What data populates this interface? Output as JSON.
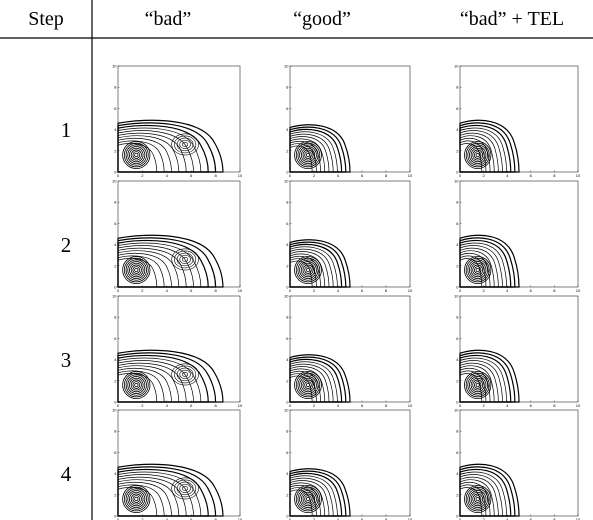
{
  "table": {
    "header": [
      "Step",
      "“bad”",
      "“good”",
      "“bad” + TEL"
    ],
    "rows": [
      "1",
      "2",
      "3",
      "4"
    ]
  },
  "plot_axes": {
    "xticks": [
      "0",
      "2",
      "4",
      "6",
      "8",
      "10"
    ],
    "yticks": [
      "0",
      "2",
      "4",
      "6",
      "8",
      "10"
    ]
  }
}
